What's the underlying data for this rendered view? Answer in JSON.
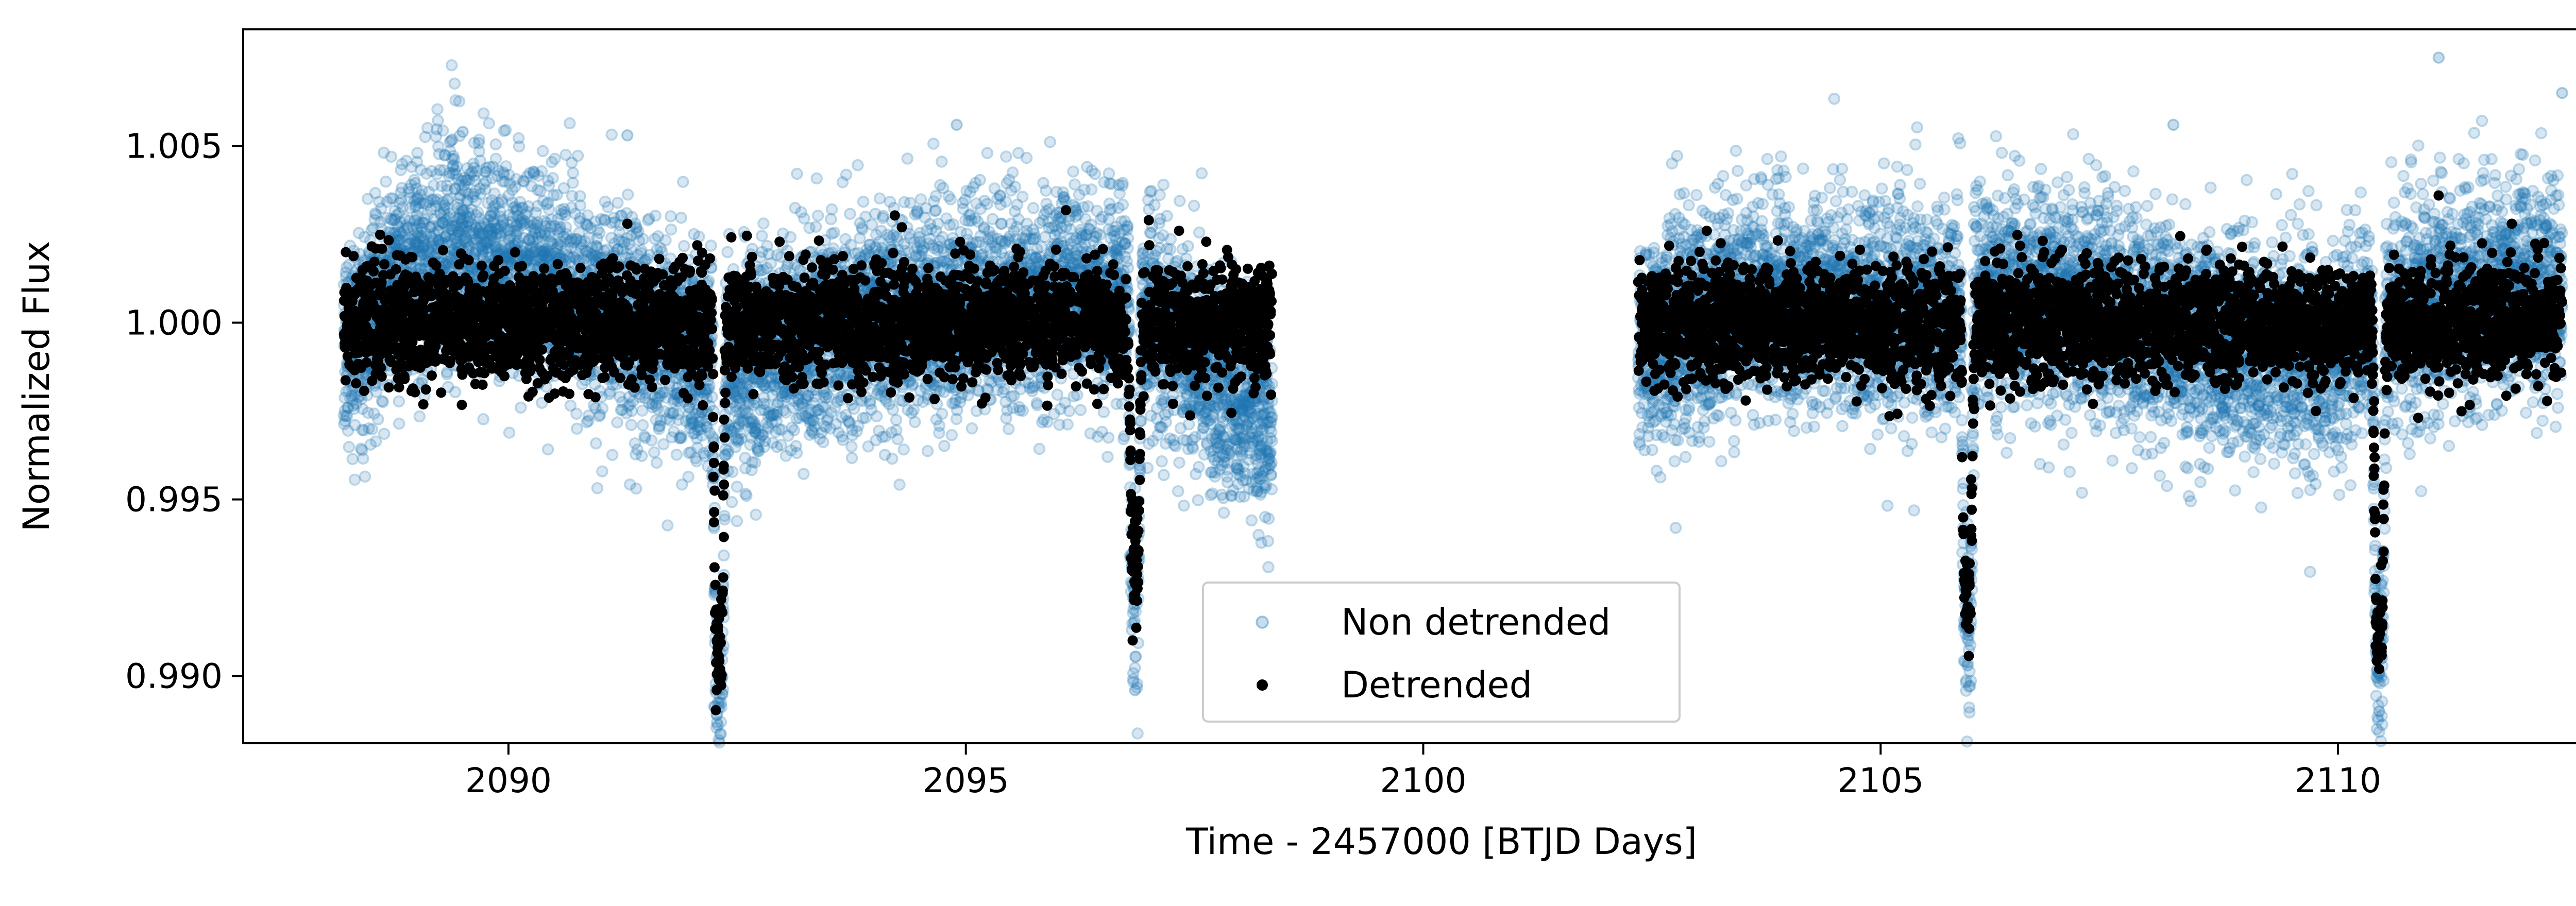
{
  "chart_data": {
    "type": "scatter",
    "title": "",
    "xlabel": "Time - 2457000 [BTJD Days]",
    "ylabel": "Normalized Flux",
    "xlim": [
      2087.1,
      2113.3
    ],
    "ylim": [
      0.9881,
      1.0083
    ],
    "x_ticks": [
      2090,
      2095,
      2100,
      2105,
      2110
    ],
    "x_tick_labels": [
      "2090",
      "2095",
      "2100",
      "2105",
      "2110"
    ],
    "y_ticks": [
      0.99,
      0.995,
      1.0,
      1.005
    ],
    "y_tick_labels": [
      "0.990",
      "0.995",
      "1.000",
      "1.005"
    ],
    "grid": false,
    "legend_position": "bottom-center",
    "colors": {
      "non_detrended": "#1f77b4",
      "detrended": "#000000"
    },
    "observation_segments": [
      [
        2088.2,
        2098.35
      ],
      [
        2102.35,
        2112.45
      ]
    ],
    "transits": [
      {
        "center": 2092.3,
        "depth_detrended": 0.0093,
        "depth_non_detrended": 0.0098
      },
      {
        "center": 2096.85,
        "depth_detrended": 0.0067,
        "depth_non_detrended": 0.0082
      },
      {
        "center": 2105.95,
        "depth_detrended": 0.0076,
        "depth_non_detrended": 0.0088
      },
      {
        "center": 2110.45,
        "depth_detrended": 0.0088,
        "depth_non_detrended": 0.0098
      }
    ],
    "series": [
      {
        "name": "Non detrended",
        "marker": "circle",
        "color": "#1f77b4",
        "alpha": 0.25,
        "baseline": [
          [
            2088.2,
            0.999
          ],
          [
            2088.8,
            1.0014
          ],
          [
            2089.5,
            1.0022
          ],
          [
            2090.5,
            1.0012
          ],
          [
            2092.0,
            0.999
          ],
          [
            2092.3,
            0.9987
          ],
          [
            2093.5,
            0.9998
          ],
          [
            2095.0,
            1.0005
          ],
          [
            2096.2,
            1.0008
          ],
          [
            2097.0,
            1.0002
          ],
          [
            2098.35,
            0.997
          ],
          [
            2102.35,
            0.999
          ],
          [
            2103.5,
            1.0006
          ],
          [
            2105.5,
            1.0003
          ],
          [
            2106.8,
            1.0009
          ],
          [
            2108.5,
            0.9995
          ],
          [
            2109.8,
            0.999
          ],
          [
            2111.0,
            1.0006
          ],
          [
            2112.45,
            1.001
          ]
        ],
        "scatter_std": 0.0015,
        "annotated_extremes": [
          [
            2111.1,
            1.0075
          ],
          [
            2112.45,
            1.0065
          ],
          [
            2089.5,
            1.0054
          ],
          [
            2091.3,
            1.0053
          ],
          [
            2094.9,
            1.0056
          ],
          [
            2108.2,
            1.0056
          ],
          [
            2092.3,
            0.9891
          ],
          [
            2096.85,
            0.9896
          ],
          [
            2110.45,
            0.989
          ],
          [
            2105.95,
            0.9903
          ]
        ]
      },
      {
        "name": "Detrended",
        "marker": "circle",
        "color": "#000000",
        "alpha": 1.0,
        "baseline": [
          [
            2088.2,
            1.0
          ],
          [
            2112.45,
            1.0
          ]
        ],
        "scatter_std": 0.0008,
        "annotated_extremes": [
          [
            2111.1,
            1.0036
          ],
          [
            2091.3,
            1.0028
          ],
          [
            2097.0,
            1.0029
          ],
          [
            2094.3,
            1.0027
          ],
          [
            2103.1,
            1.0026
          ],
          [
            2111.9,
            1.0028
          ],
          [
            2092.3,
            0.9899
          ],
          [
            2110.45,
            0.9902
          ],
          [
            2096.85,
            0.9923
          ],
          [
            2105.95,
            0.9916
          ]
        ]
      }
    ]
  },
  "legend": {
    "items": [
      {
        "label": "Non detrended",
        "color": "#1f77b4"
      },
      {
        "label": "Detrended",
        "color": "#000000"
      }
    ]
  }
}
